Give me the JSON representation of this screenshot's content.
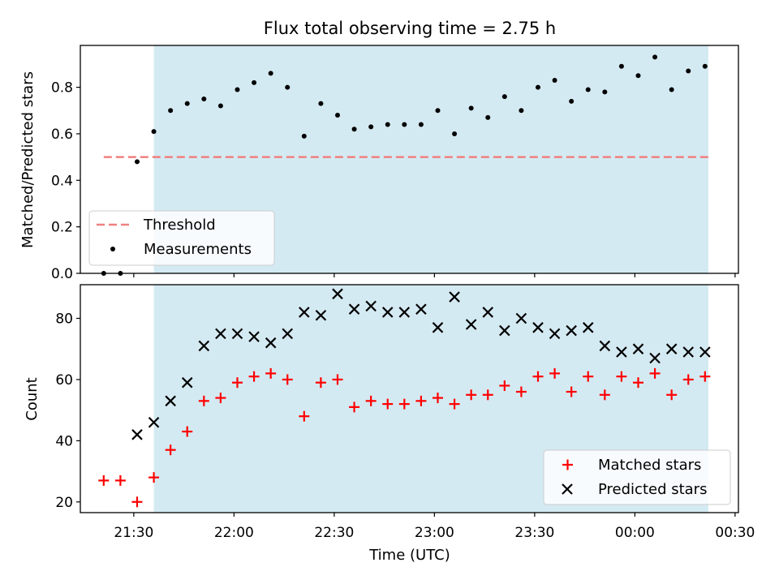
{
  "title": "Flux total observing time = 2.75 h",
  "colors": {
    "span": "#add8e6",
    "threshold": "#f08080",
    "measurement": "#000000",
    "matched": "#ff0000",
    "predicted": "#000000"
  },
  "chart_data": [
    {
      "type": "scatter",
      "title": "Flux total observing time = 2.75 h",
      "xlabel": "",
      "ylabel": "Matched/Predicted stars",
      "ylim": [
        0,
        0.98
      ],
      "yticks": [
        0.0,
        0.2,
        0.4,
        0.6,
        0.8
      ],
      "ytick_labels": [
        "0.0",
        "0.2",
        "0.4",
        "0.6",
        "0.8"
      ],
      "shaded_span": [
        "21:36",
        "00:22"
      ],
      "threshold": {
        "name": "Threshold",
        "y": 0.5,
        "x_start": "21:21",
        "x_end": "00:22"
      },
      "series": [
        {
          "name": "Measurements",
          "x": [
            "21:21",
            "21:26",
            "21:31",
            "21:36",
            "21:41",
            "21:46",
            "21:51",
            "21:56",
            "22:01",
            "22:06",
            "22:11",
            "22:16",
            "22:21",
            "22:26",
            "22:31",
            "22:36",
            "22:41",
            "22:46",
            "22:51",
            "22:56",
            "23:01",
            "23:06",
            "23:11",
            "23:16",
            "23:21",
            "23:26",
            "23:31",
            "23:36",
            "23:41",
            "23:46",
            "23:51",
            "23:56",
            "00:01",
            "00:06",
            "00:11",
            "00:16",
            "00:21"
          ],
          "y": [
            0.0,
            0.0,
            0.48,
            0.61,
            0.7,
            0.73,
            0.75,
            0.72,
            0.79,
            0.82,
            0.86,
            0.8,
            0.59,
            0.73,
            0.68,
            0.62,
            0.63,
            0.64,
            0.64,
            0.64,
            0.7,
            0.6,
            0.71,
            0.67,
            0.76,
            0.7,
            0.8,
            0.83,
            0.74,
            0.79,
            0.78,
            0.89,
            0.85,
            0.93,
            0.79,
            0.87,
            0.89
          ]
        }
      ],
      "legend": {
        "placement": "lower-left",
        "entries": [
          "Threshold",
          "Measurements"
        ]
      }
    },
    {
      "type": "scatter",
      "title": "",
      "xlabel": "Time (UTC)",
      "ylabel": "Count",
      "ylim": [
        16.5,
        91
      ],
      "yticks": [
        20,
        40,
        60,
        80
      ],
      "ytick_labels": [
        "20",
        "40",
        "60",
        "80"
      ],
      "xlim": [
        "21:14",
        "00:31"
      ],
      "xticks": [
        "21:30",
        "22:00",
        "22:30",
        "23:00",
        "23:30",
        "00:00",
        "00:30"
      ],
      "shaded_span": [
        "21:36",
        "00:22"
      ],
      "series": [
        {
          "name": "Matched stars",
          "x": [
            "21:21",
            "21:26",
            "21:31",
            "21:36",
            "21:41",
            "21:46",
            "21:51",
            "21:56",
            "22:01",
            "22:06",
            "22:11",
            "22:16",
            "22:21",
            "22:26",
            "22:31",
            "22:36",
            "22:41",
            "22:46",
            "22:51",
            "22:56",
            "23:01",
            "23:06",
            "23:11",
            "23:16",
            "23:21",
            "23:26",
            "23:31",
            "23:36",
            "23:41",
            "23:46",
            "23:51",
            "23:56",
            "00:01",
            "00:06",
            "00:11",
            "00:16",
            "00:21"
          ],
          "y": [
            27,
            27,
            20,
            28,
            37,
            43,
            53,
            54,
            59,
            61,
            62,
            60,
            48,
            59,
            60,
            51,
            53,
            52,
            52,
            53,
            54,
            52,
            55,
            55,
            58,
            56,
            61,
            62,
            56,
            61,
            55,
            61,
            59,
            62,
            55,
            60,
            61
          ]
        },
        {
          "name": "Predicted stars",
          "x": [
            "21:31",
            "21:36",
            "21:41",
            "21:46",
            "21:51",
            "21:56",
            "22:01",
            "22:06",
            "22:11",
            "22:16",
            "22:21",
            "22:26",
            "22:31",
            "22:36",
            "22:41",
            "22:46",
            "22:51",
            "22:56",
            "23:01",
            "23:06",
            "23:11",
            "23:16",
            "23:21",
            "23:26",
            "23:31",
            "23:36",
            "23:41",
            "23:46",
            "23:51",
            "23:56",
            "00:01",
            "00:06",
            "00:11",
            "00:16",
            "00:21"
          ],
          "y": [
            42,
            46,
            53,
            59,
            71,
            75,
            75,
            74,
            72,
            75,
            82,
            81,
            88,
            83,
            84,
            82,
            82,
            83,
            77,
            87,
            78,
            82,
            76,
            80,
            77,
            75,
            76,
            77,
            71,
            69,
            70,
            67,
            70,
            69,
            69
          ]
        }
      ],
      "legend": {
        "placement": "lower-right",
        "entries": [
          "Matched stars",
          "Predicted stars"
        ]
      }
    }
  ]
}
